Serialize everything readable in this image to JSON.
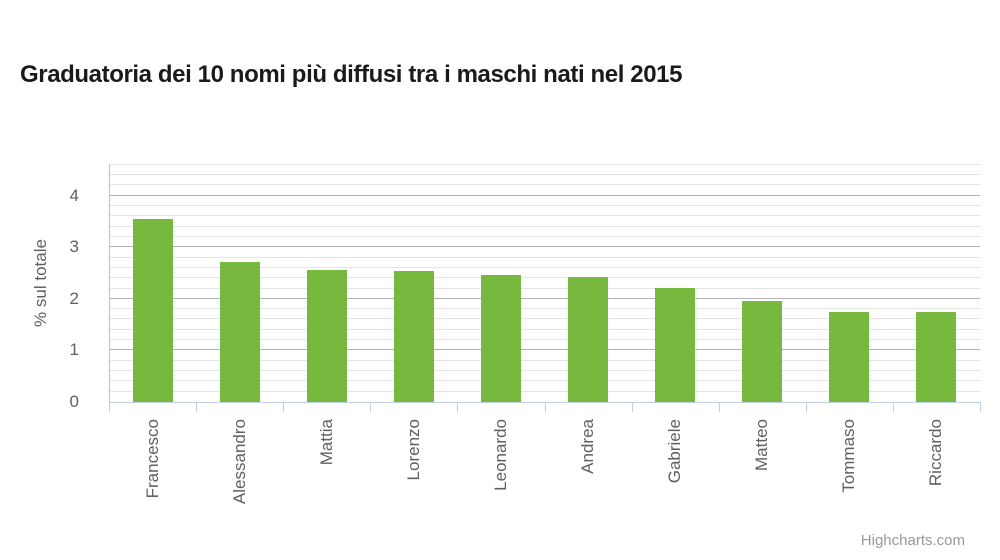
{
  "page": {
    "background": "#FFFFFF"
  },
  "title": {
    "text": "Graduatoria dei 10 nomi più diffusi tra i maschi nati nel 2015"
  },
  "credits": {
    "label": "Highcharts.com"
  },
  "chart_data": {
    "type": "bar",
    "title": "Graduatoria dei 10 nomi più diffusi tra i maschi nati nel 2015",
    "categories": [
      "Francesco",
      "Alessandro",
      "Mattia",
      "Lorenzo",
      "Leonardo",
      "Andrea",
      "Gabriele",
      "Matteo",
      "Tommaso",
      "Riccardo"
    ],
    "values": [
      3.55,
      2.72,
      2.56,
      2.54,
      2.47,
      2.42,
      2.21,
      1.96,
      1.75,
      1.74
    ],
    "xlabel": "",
    "ylabel": "% sul totale",
    "ylim": [
      0,
      4.6
    ],
    "y_ticks": [
      0,
      1,
      2,
      3,
      4
    ],
    "minor_tick_interval": 0.2,
    "grid": "horizontal major and minor gridlines",
    "legend": "none",
    "bar_color": "#77B83E",
    "axis_color": "#C0D0E0",
    "label_color": "#606060"
  }
}
